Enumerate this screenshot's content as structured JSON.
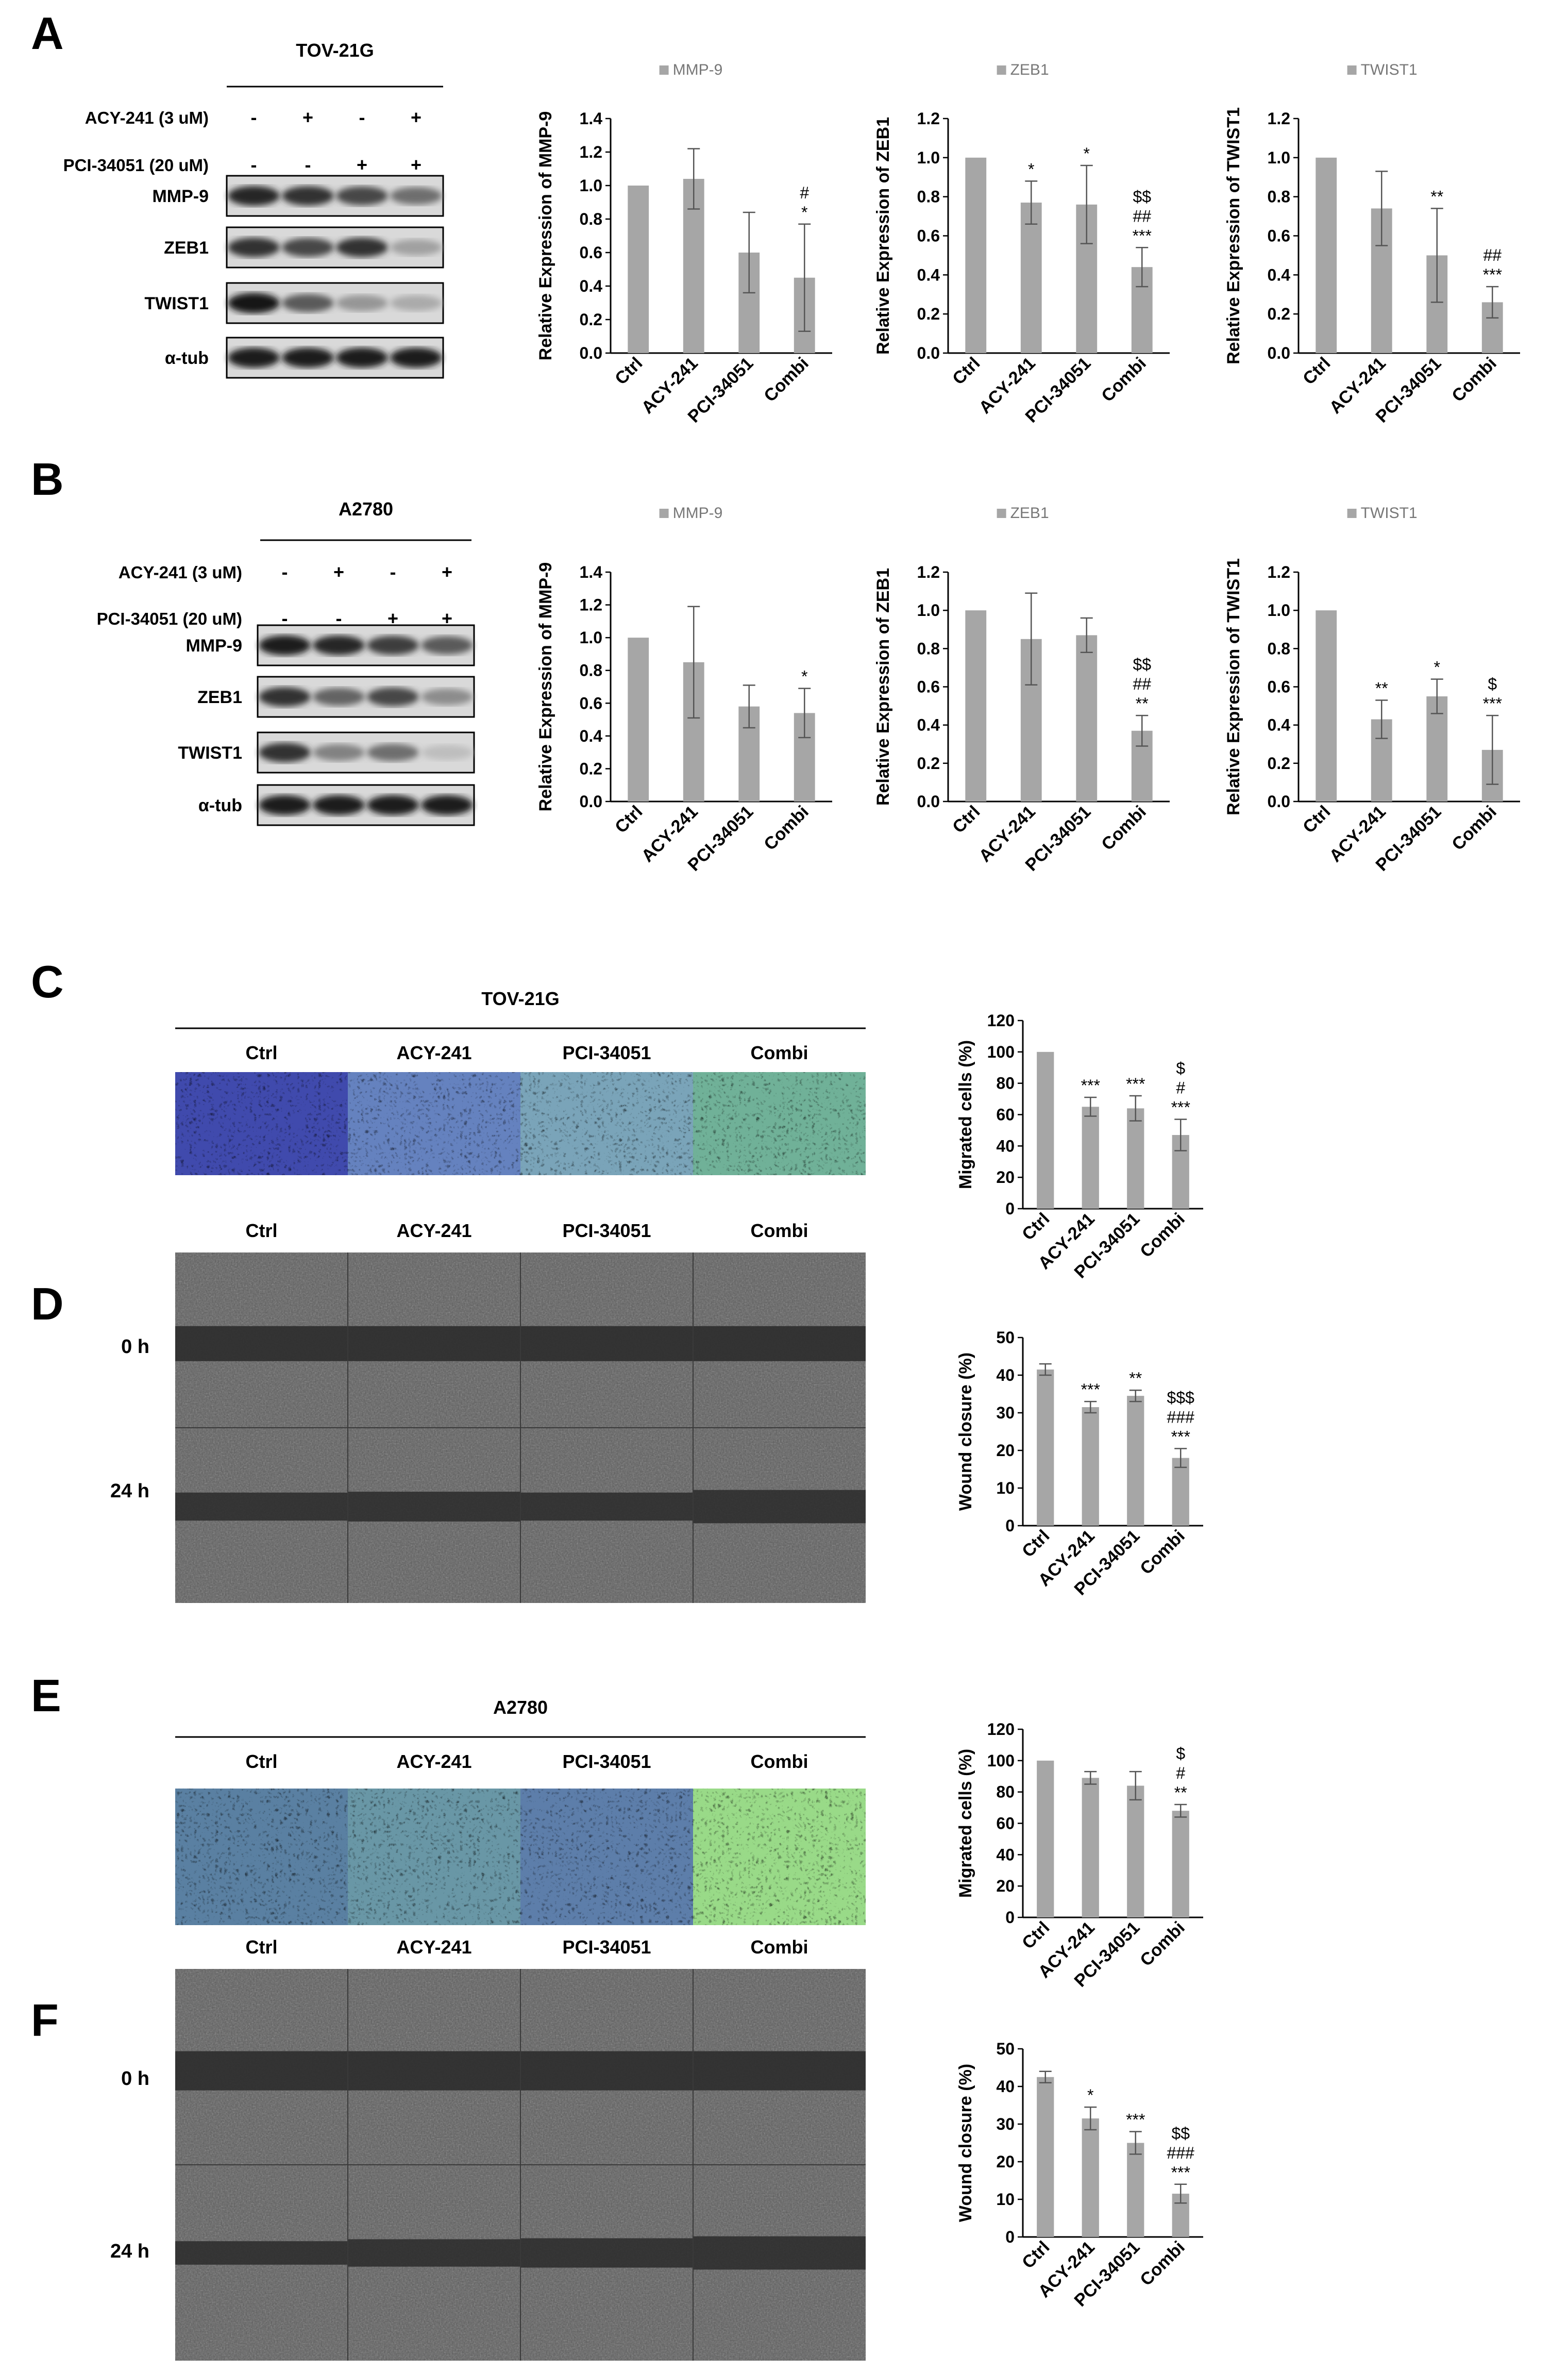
{
  "panels": {
    "A": "A",
    "B": "B",
    "C": "C",
    "D": "D",
    "E": "E",
    "F": "F"
  },
  "blots": [
    {
      "cell": "TOV-21G",
      "row1_label": "ACY-241 (3 uM)",
      "row1_signs": [
        "-",
        "+",
        "-",
        "+"
      ],
      "row2_label": "PCI-34051 (20 uM)",
      "row2_signs": [
        "-",
        "-",
        "+",
        "+"
      ],
      "bands": [
        {
          "label": "MMP-9",
          "intensity": [
            0.85,
            0.8,
            0.7,
            0.5
          ]
        },
        {
          "label": "ZEB1",
          "intensity": [
            0.8,
            0.7,
            0.8,
            0.25
          ]
        },
        {
          "label": "TWIST1",
          "intensity": [
            0.95,
            0.6,
            0.3,
            0.2
          ]
        },
        {
          "label": "α-tub",
          "intensity": [
            0.9,
            0.9,
            0.9,
            0.9
          ]
        }
      ]
    },
    {
      "cell": "A2780",
      "row1_label": "ACY-241 (3 uM)",
      "row1_signs": [
        "-",
        "+",
        "-",
        "+"
      ],
      "row2_label": "PCI-34051 (20 uM)",
      "row2_signs": [
        "-",
        "-",
        "+",
        "+"
      ],
      "bands": [
        {
          "label": "MMP-9",
          "intensity": [
            0.9,
            0.85,
            0.75,
            0.6
          ]
        },
        {
          "label": "ZEB1",
          "intensity": [
            0.8,
            0.55,
            0.7,
            0.35
          ]
        },
        {
          "label": "TWIST1",
          "intensity": [
            0.8,
            0.4,
            0.5,
            0.1
          ]
        },
        {
          "label": "α-tub",
          "intensity": [
            0.9,
            0.9,
            0.9,
            0.9
          ]
        }
      ]
    }
  ],
  "micro_sections": [
    {
      "cell": "TOV-21G",
      "columns": [
        "Ctrl",
        "ACY-241",
        "PCI-34051",
        "Combi"
      ],
      "stain_colors": [
        "#3b3fae",
        "#5a6cc8",
        "#6f8fc8",
        "#4a8fa0"
      ],
      "green": [
        0.05,
        0.3,
        0.45,
        0.7
      ]
    },
    {
      "cell": "A2780",
      "columns": [
        "Ctrl",
        "ACY-241",
        "PCI-34051",
        "Combi"
      ],
      "stain_colors": [
        "#3d56a8",
        "#4f72b0",
        "#4a5eb0",
        "#7fcf8a"
      ],
      "green": [
        0.5,
        0.55,
        0.4,
        0.9
      ]
    }
  ],
  "wound_sections": [
    {
      "columns": [
        "Ctrl",
        "ACY-241",
        "PCI-34051",
        "Combi"
      ],
      "rows": [
        "0 h",
        "24 h"
      ],
      "gap24": [
        0.8,
        0.85,
        0.8,
        0.95
      ]
    },
    {
      "columns": [
        "Ctrl",
        "ACY-241",
        "PCI-34051",
        "Combi"
      ],
      "rows": [
        "0 h",
        "24 h"
      ],
      "gap24": [
        0.6,
        0.7,
        0.75,
        0.85
      ]
    }
  ],
  "chart_data": [
    {
      "id": "A-MMP9",
      "type": "bar",
      "legend": "MMP-9",
      "ylabel": "Relative Expression of MMP-9",
      "categories": [
        "Ctrl",
        "ACY-241",
        "PCI-34051",
        "Combi"
      ],
      "values": [
        1.0,
        1.04,
        0.6,
        0.45
      ],
      "errors": [
        0,
        0.18,
        0.24,
        0.32
      ],
      "ylim": [
        0,
        1.4
      ],
      "ticks": [
        "0.0",
        "0.2",
        "0.4",
        "0.6",
        "0.8",
        "1.0",
        "1.2",
        "1.4"
      ],
      "annotations": [
        [],
        [],
        [],
        [
          "#",
          "*"
        ]
      ]
    },
    {
      "id": "A-ZEB1",
      "type": "bar",
      "legend": "ZEB1",
      "ylabel": "Relative Expression of  ZEB1",
      "categories": [
        "Ctrl",
        "ACY-241",
        "PCI-34051",
        "Combi"
      ],
      "values": [
        1.0,
        0.77,
        0.76,
        0.44
      ],
      "errors": [
        0,
        0.11,
        0.2,
        0.1
      ],
      "ylim": [
        0,
        1.2
      ],
      "ticks": [
        "0.0",
        "0.2",
        "0.4",
        "0.6",
        "0.8",
        "1.0",
        "1.2"
      ],
      "annotations": [
        [],
        [
          "*"
        ],
        [
          "*"
        ],
        [
          "$$",
          "##",
          "***"
        ]
      ]
    },
    {
      "id": "A-TWIST1",
      "type": "bar",
      "legend": "TWIST1",
      "ylabel": "Relative Expression of TWIST1",
      "categories": [
        "Ctrl",
        "ACY-241",
        "PCI-34051",
        "Combi"
      ],
      "values": [
        1.0,
        0.74,
        0.5,
        0.26
      ],
      "errors": [
        0,
        0.19,
        0.24,
        0.08
      ],
      "ylim": [
        0,
        1.2
      ],
      "ticks": [
        "0.0",
        "0.2",
        "0.4",
        "0.6",
        "0.8",
        "1.0",
        "1.2"
      ],
      "annotations": [
        [],
        [],
        [
          "**"
        ],
        [
          "##",
          "***"
        ]
      ]
    },
    {
      "id": "B-MMP9",
      "type": "bar",
      "legend": "MMP-9",
      "ylabel": "Relative Expression of MMP-9",
      "categories": [
        "Ctrl",
        "ACY-241",
        "PCI-34051",
        "Combi"
      ],
      "values": [
        1.0,
        0.85,
        0.58,
        0.54
      ],
      "errors": [
        0,
        0.34,
        0.13,
        0.15
      ],
      "ylim": [
        0,
        1.4
      ],
      "ticks": [
        "0.0",
        "0.2",
        "0.4",
        "0.6",
        "0.8",
        "1.0",
        "1.2",
        "1.4"
      ],
      "annotations": [
        [],
        [],
        [],
        [
          "*"
        ]
      ]
    },
    {
      "id": "B-ZEB1",
      "type": "bar",
      "legend": "ZEB1",
      "ylabel": "Relative Expression of ZEB1",
      "categories": [
        "Ctrl",
        "ACY-241",
        "PCI-34051",
        "Combi"
      ],
      "values": [
        1.0,
        0.85,
        0.87,
        0.37
      ],
      "errors": [
        0,
        0.24,
        0.09,
        0.08
      ],
      "ylim": [
        0,
        1.2
      ],
      "ticks": [
        "0.0",
        "0.2",
        "0.4",
        "0.6",
        "0.8",
        "1.0",
        "1.2"
      ],
      "annotations": [
        [],
        [],
        [],
        [
          "$$",
          "##",
          "**"
        ]
      ]
    },
    {
      "id": "B-TWIST1",
      "type": "bar",
      "legend": "TWIST1",
      "ylabel": "Relative Expression of TWIST1",
      "categories": [
        "Ctrl",
        "ACY-241",
        "PCI-34051",
        "Combi"
      ],
      "values": [
        1.0,
        0.43,
        0.55,
        0.27
      ],
      "errors": [
        0,
        0.1,
        0.09,
        0.18
      ],
      "ylim": [
        0,
        1.2
      ],
      "ticks": [
        "0.0",
        "0.2",
        "0.4",
        "0.6",
        "0.8",
        "1.0",
        "1.2"
      ],
      "annotations": [
        [],
        [
          "**"
        ],
        [
          "*"
        ],
        [
          "$",
          "***"
        ]
      ]
    },
    {
      "id": "C-migr",
      "type": "bar",
      "ylabel": "Migrated cells (%)",
      "categories": [
        "Ctrl",
        "ACY-241",
        "PCI-34051",
        "Combi"
      ],
      "values": [
        100,
        65,
        64,
        47
      ],
      "errors": [
        0,
        6,
        8,
        10
      ],
      "ylim": [
        0,
        120
      ],
      "ticks": [
        "0",
        "10",
        "20",
        "30",
        "40",
        "50",
        "60",
        "70",
        "80",
        "90",
        "100",
        "110",
        "120"
      ],
      "tickstep_labels": [
        "0",
        "20",
        "40",
        "60",
        "80",
        "100",
        "120"
      ],
      "annotations": [
        [],
        [
          "***"
        ],
        [
          "***"
        ],
        [
          "$",
          "#",
          "***"
        ]
      ]
    },
    {
      "id": "D-wound",
      "type": "bar",
      "ylabel": "Wound closure (%)",
      "categories": [
        "Ctrl",
        "ACY-241",
        "PCI-34051",
        "Combi"
      ],
      "values": [
        41.5,
        31.5,
        34.5,
        18
      ],
      "errors": [
        1.5,
        1.5,
        1.5,
        2.5
      ],
      "ylim": [
        0,
        50
      ],
      "ticks": [
        "0",
        "10",
        "20",
        "30",
        "40",
        "50"
      ],
      "annotations": [
        [],
        [
          "***"
        ],
        [
          "**"
        ],
        [
          "$$$",
          "###",
          "***"
        ]
      ]
    },
    {
      "id": "E-migr",
      "type": "bar",
      "ylabel": "Migrated cells (%)",
      "categories": [
        "Ctrl",
        "ACY-241",
        "PCI-34051",
        "Combi"
      ],
      "values": [
        100,
        89,
        84,
        68
      ],
      "errors": [
        0,
        4,
        9,
        4
      ],
      "ylim": [
        0,
        120
      ],
      "ticks": [
        "0",
        "20",
        "40",
        "60",
        "80",
        "100",
        "120"
      ],
      "annotations": [
        [],
        [],
        [],
        [
          "$",
          "#",
          "**"
        ]
      ]
    },
    {
      "id": "F-wound",
      "type": "bar",
      "ylabel": "Wound closure (%)",
      "categories": [
        "Ctrl",
        "ACY-241",
        "PCI-34051",
        "Combi"
      ],
      "values": [
        42.5,
        31.5,
        25,
        11.5
      ],
      "errors": [
        1.5,
        3,
        3,
        2.5
      ],
      "ylim": [
        0,
        50
      ],
      "ticks": [
        "0",
        "10",
        "20",
        "30",
        "40",
        "50"
      ],
      "annotations": [
        [],
        [
          "*"
        ],
        [
          "***"
        ],
        [
          "$$",
          "###",
          "***"
        ]
      ]
    }
  ],
  "colors": {
    "bar": "#a6a6a6",
    "axis": "#000000",
    "err": "#555555"
  }
}
